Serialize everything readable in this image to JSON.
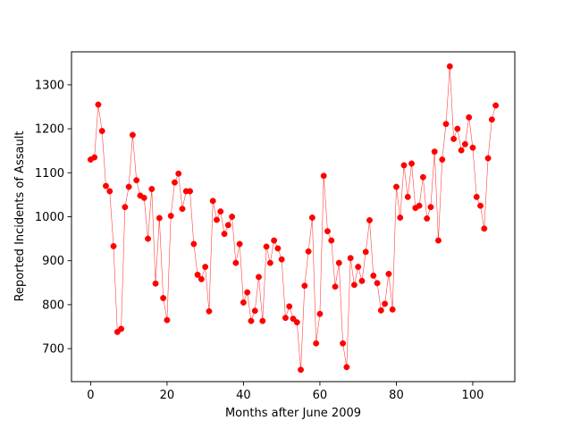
{
  "chart_data": {
    "type": "line",
    "title": "",
    "xlabel": "Months after June 2009",
    "ylabel": "Reported Incidents of Assault",
    "xlim": [
      -5,
      111
    ],
    "ylim": [
      625,
      1375
    ],
    "xticks": [
      0,
      20,
      40,
      60,
      80,
      100
    ],
    "yticks": [
      700,
      800,
      900,
      1000,
      1100,
      1200,
      1300
    ],
    "grid": false,
    "legend": "none",
    "series": [
      {
        "color": "#ff0000",
        "marker": "circle",
        "x": [
          0,
          1,
          2,
          3,
          4,
          5,
          6,
          7,
          8,
          9,
          10,
          11,
          12,
          13,
          14,
          15,
          16,
          17,
          18,
          19,
          20,
          21,
          22,
          23,
          24,
          25,
          26,
          27,
          28,
          29,
          30,
          31,
          32,
          33,
          34,
          35,
          36,
          37,
          38,
          39,
          40,
          41,
          42,
          43,
          44,
          45,
          46,
          47,
          48,
          49,
          50,
          51,
          52,
          53,
          54,
          55,
          56,
          57,
          58,
          59,
          60,
          61,
          62,
          63,
          64,
          65,
          66,
          67,
          68,
          69,
          70,
          71,
          72,
          73,
          74,
          75,
          76,
          77,
          78,
          79,
          80,
          81,
          82,
          83,
          84,
          85,
          86,
          87,
          88,
          89,
          90,
          91,
          92,
          93,
          94,
          95,
          96,
          97,
          98,
          99,
          100,
          101,
          102,
          103,
          104,
          105,
          106
        ],
        "y": [
          1130,
          1135,
          1255,
          1195,
          1070,
          1058,
          933,
          738,
          745,
          1022,
          1068,
          1186,
          1083,
          1048,
          1043,
          950,
          1063,
          848,
          997,
          815,
          765,
          1002,
          1078,
          1098,
          1018,
          1058,
          1058,
          938,
          868,
          858,
          886,
          785,
          1036,
          993,
          1012,
          961,
          981,
          1000,
          895,
          938,
          805,
          828,
          763,
          786,
          863,
          763,
          932,
          895,
          946,
          928,
          903,
          770,
          796,
          768,
          760,
          652,
          843,
          921,
          998,
          712,
          779,
          1093,
          967,
          946,
          841,
          895,
          712,
          658,
          906,
          845,
          886,
          854,
          920,
          992,
          866,
          849,
          787,
          802,
          870,
          789,
          1068,
          998,
          1117,
          1045,
          1121,
          1020,
          1025,
          1090,
          996,
          1022,
          1148,
          946,
          1130,
          1211,
          1342,
          1177,
          1200,
          1151,
          1165,
          1226,
          1157,
          1045,
          1025,
          973,
          1133,
          1221,
          1253
        ]
      }
    ]
  }
}
